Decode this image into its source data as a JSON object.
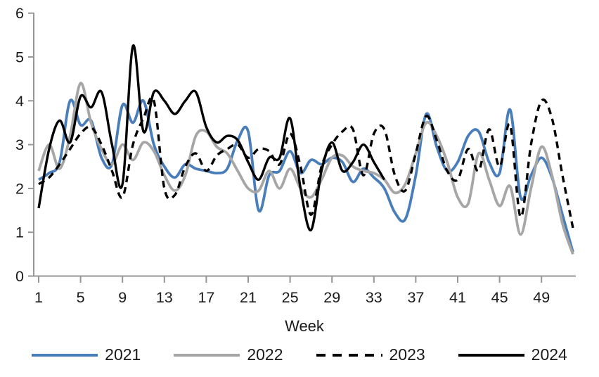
{
  "chart_data": {
    "type": "line",
    "title": "",
    "xlabel": "Week",
    "ylabel": "",
    "x_range": [
      1,
      52
    ],
    "ylim": [
      0,
      6
    ],
    "y_ticks": [
      0,
      1,
      2,
      3,
      4,
      5,
      6
    ],
    "x_ticks": [
      1,
      5,
      9,
      13,
      17,
      21,
      25,
      29,
      33,
      37,
      41,
      45,
      49
    ],
    "grid": false,
    "legend_position": "bottom",
    "smoothing": true,
    "series": [
      {
        "name": "2021",
        "color": "#4a7ebb",
        "style": "solid",
        "start_week": 1,
        "values": [
          2.2,
          2.35,
          2.6,
          4.0,
          3.45,
          3.55,
          2.7,
          2.55,
          3.9,
          3.5,
          4.0,
          3.0,
          2.5,
          2.25,
          2.55,
          2.45,
          2.4,
          2.35,
          2.45,
          3.1,
          3.3,
          1.5,
          2.3,
          2.4,
          2.85,
          2.35,
          2.65,
          2.55,
          2.7,
          2.6,
          2.15,
          2.45,
          2.25,
          2.0,
          1.45,
          1.3,
          2.3,
          3.7,
          2.95,
          2.4,
          2.6,
          3.2,
          3.3,
          2.6,
          2.35,
          3.8,
          1.8,
          2.3,
          2.7,
          2.25,
          1.4,
          0.55
        ]
      },
      {
        "name": "2022",
        "color": "#a6a6a6",
        "style": "solid",
        "start_week": 1,
        "values": [
          2.4,
          3.0,
          2.45,
          3.2,
          4.4,
          3.5,
          2.9,
          2.55,
          3.0,
          2.65,
          3.05,
          2.85,
          2.3,
          1.95,
          2.3,
          3.2,
          3.3,
          2.95,
          2.8,
          2.4,
          2.0,
          1.95,
          2.4,
          2.0,
          2.45,
          2.0,
          1.8,
          2.2,
          2.7,
          2.75,
          2.5,
          2.4,
          2.35,
          2.2,
          1.9,
          2.1,
          2.8,
          3.5,
          3.2,
          2.6,
          1.8,
          1.65,
          2.8,
          2.2,
          1.6,
          2.05,
          0.95,
          2.0,
          2.95,
          2.3,
          1.2,
          0.5
        ]
      },
      {
        "name": "2023",
        "color": "#000000",
        "style": "dashed",
        "start_week": 1,
        "values": [
          2.1,
          2.25,
          2.55,
          2.9,
          3.25,
          3.4,
          3.0,
          2.4,
          1.8,
          3.0,
          3.6,
          4.0,
          2.0,
          1.85,
          2.5,
          2.8,
          2.4,
          2.75,
          2.9,
          3.0,
          2.7,
          2.9,
          2.85,
          2.55,
          3.25,
          2.5,
          1.4,
          2.5,
          3.0,
          3.3,
          3.35,
          2.3,
          3.25,
          3.35,
          2.3,
          1.95,
          2.8,
          3.65,
          3.1,
          2.4,
          2.2,
          2.9,
          2.4,
          3.35,
          2.5,
          3.45,
          1.35,
          3.0,
          4.0,
          3.6,
          2.3,
          1.1
        ]
      },
      {
        "name": "2024",
        "color": "#000000",
        "style": "solid",
        "start_week": 1,
        "values": [
          1.55,
          2.9,
          3.55,
          3.05,
          4.1,
          3.85,
          4.2,
          3.0,
          2.1,
          5.25,
          3.3,
          4.2,
          4.0,
          3.7,
          4.0,
          4.2,
          3.4,
          3.05,
          3.2,
          3.1,
          2.6,
          2.2,
          2.7,
          2.7,
          3.6,
          2.0,
          1.05,
          2.4,
          3.05,
          2.4,
          2.6,
          3.0,
          2.6,
          2.2
        ]
      }
    ]
  },
  "legend": {
    "items": [
      "2021",
      "2022",
      "2023",
      "2024"
    ]
  },
  "colors": {
    "background": "#ffffff",
    "axis": "#969696",
    "text": "#1a1a1a"
  }
}
